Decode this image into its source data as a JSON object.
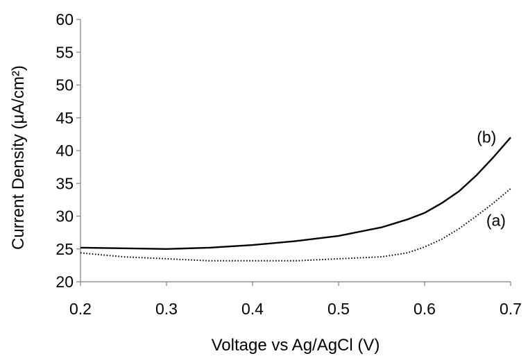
{
  "chart_data": {
    "type": "line",
    "xlabel": "Voltage vs Ag/AgCl (V)",
    "ylabel": "Current Density (μA/cm²)",
    "xlim": [
      0.2,
      0.7
    ],
    "ylim": [
      20,
      60
    ],
    "xticks": [
      "0.2",
      "0.3",
      "0.4",
      "0.5",
      "0.6",
      "0.7"
    ],
    "yticks": [
      "20",
      "25",
      "30",
      "35",
      "40",
      "45",
      "50",
      "55",
      "60"
    ],
    "grid": false,
    "series": [
      {
        "name": "(b)",
        "style": "solid",
        "color": "#000000",
        "x": [
          0.2,
          0.25,
          0.3,
          0.35,
          0.4,
          0.45,
          0.5,
          0.55,
          0.58,
          0.6,
          0.62,
          0.64,
          0.66,
          0.68,
          0.7
        ],
        "y": [
          25.2,
          25.1,
          25.0,
          25.2,
          25.6,
          26.2,
          27.0,
          28.3,
          29.5,
          30.5,
          32.0,
          33.8,
          36.2,
          39.0,
          42.0
        ]
      },
      {
        "name": "(a)",
        "style": "dotted",
        "color": "#000000",
        "x": [
          0.2,
          0.25,
          0.3,
          0.35,
          0.4,
          0.45,
          0.5,
          0.55,
          0.58,
          0.6,
          0.62,
          0.64,
          0.66,
          0.68,
          0.7
        ],
        "y": [
          24.4,
          23.8,
          23.5,
          23.2,
          23.2,
          23.2,
          23.5,
          23.8,
          24.4,
          25.3,
          26.5,
          28.1,
          30.0,
          32.0,
          34.2
        ]
      }
    ],
    "annotations": [
      {
        "text": "(b)",
        "x": 0.672,
        "y": 41.2
      },
      {
        "text": "(a)",
        "x": 0.683,
        "y": 28.5
      }
    ]
  }
}
